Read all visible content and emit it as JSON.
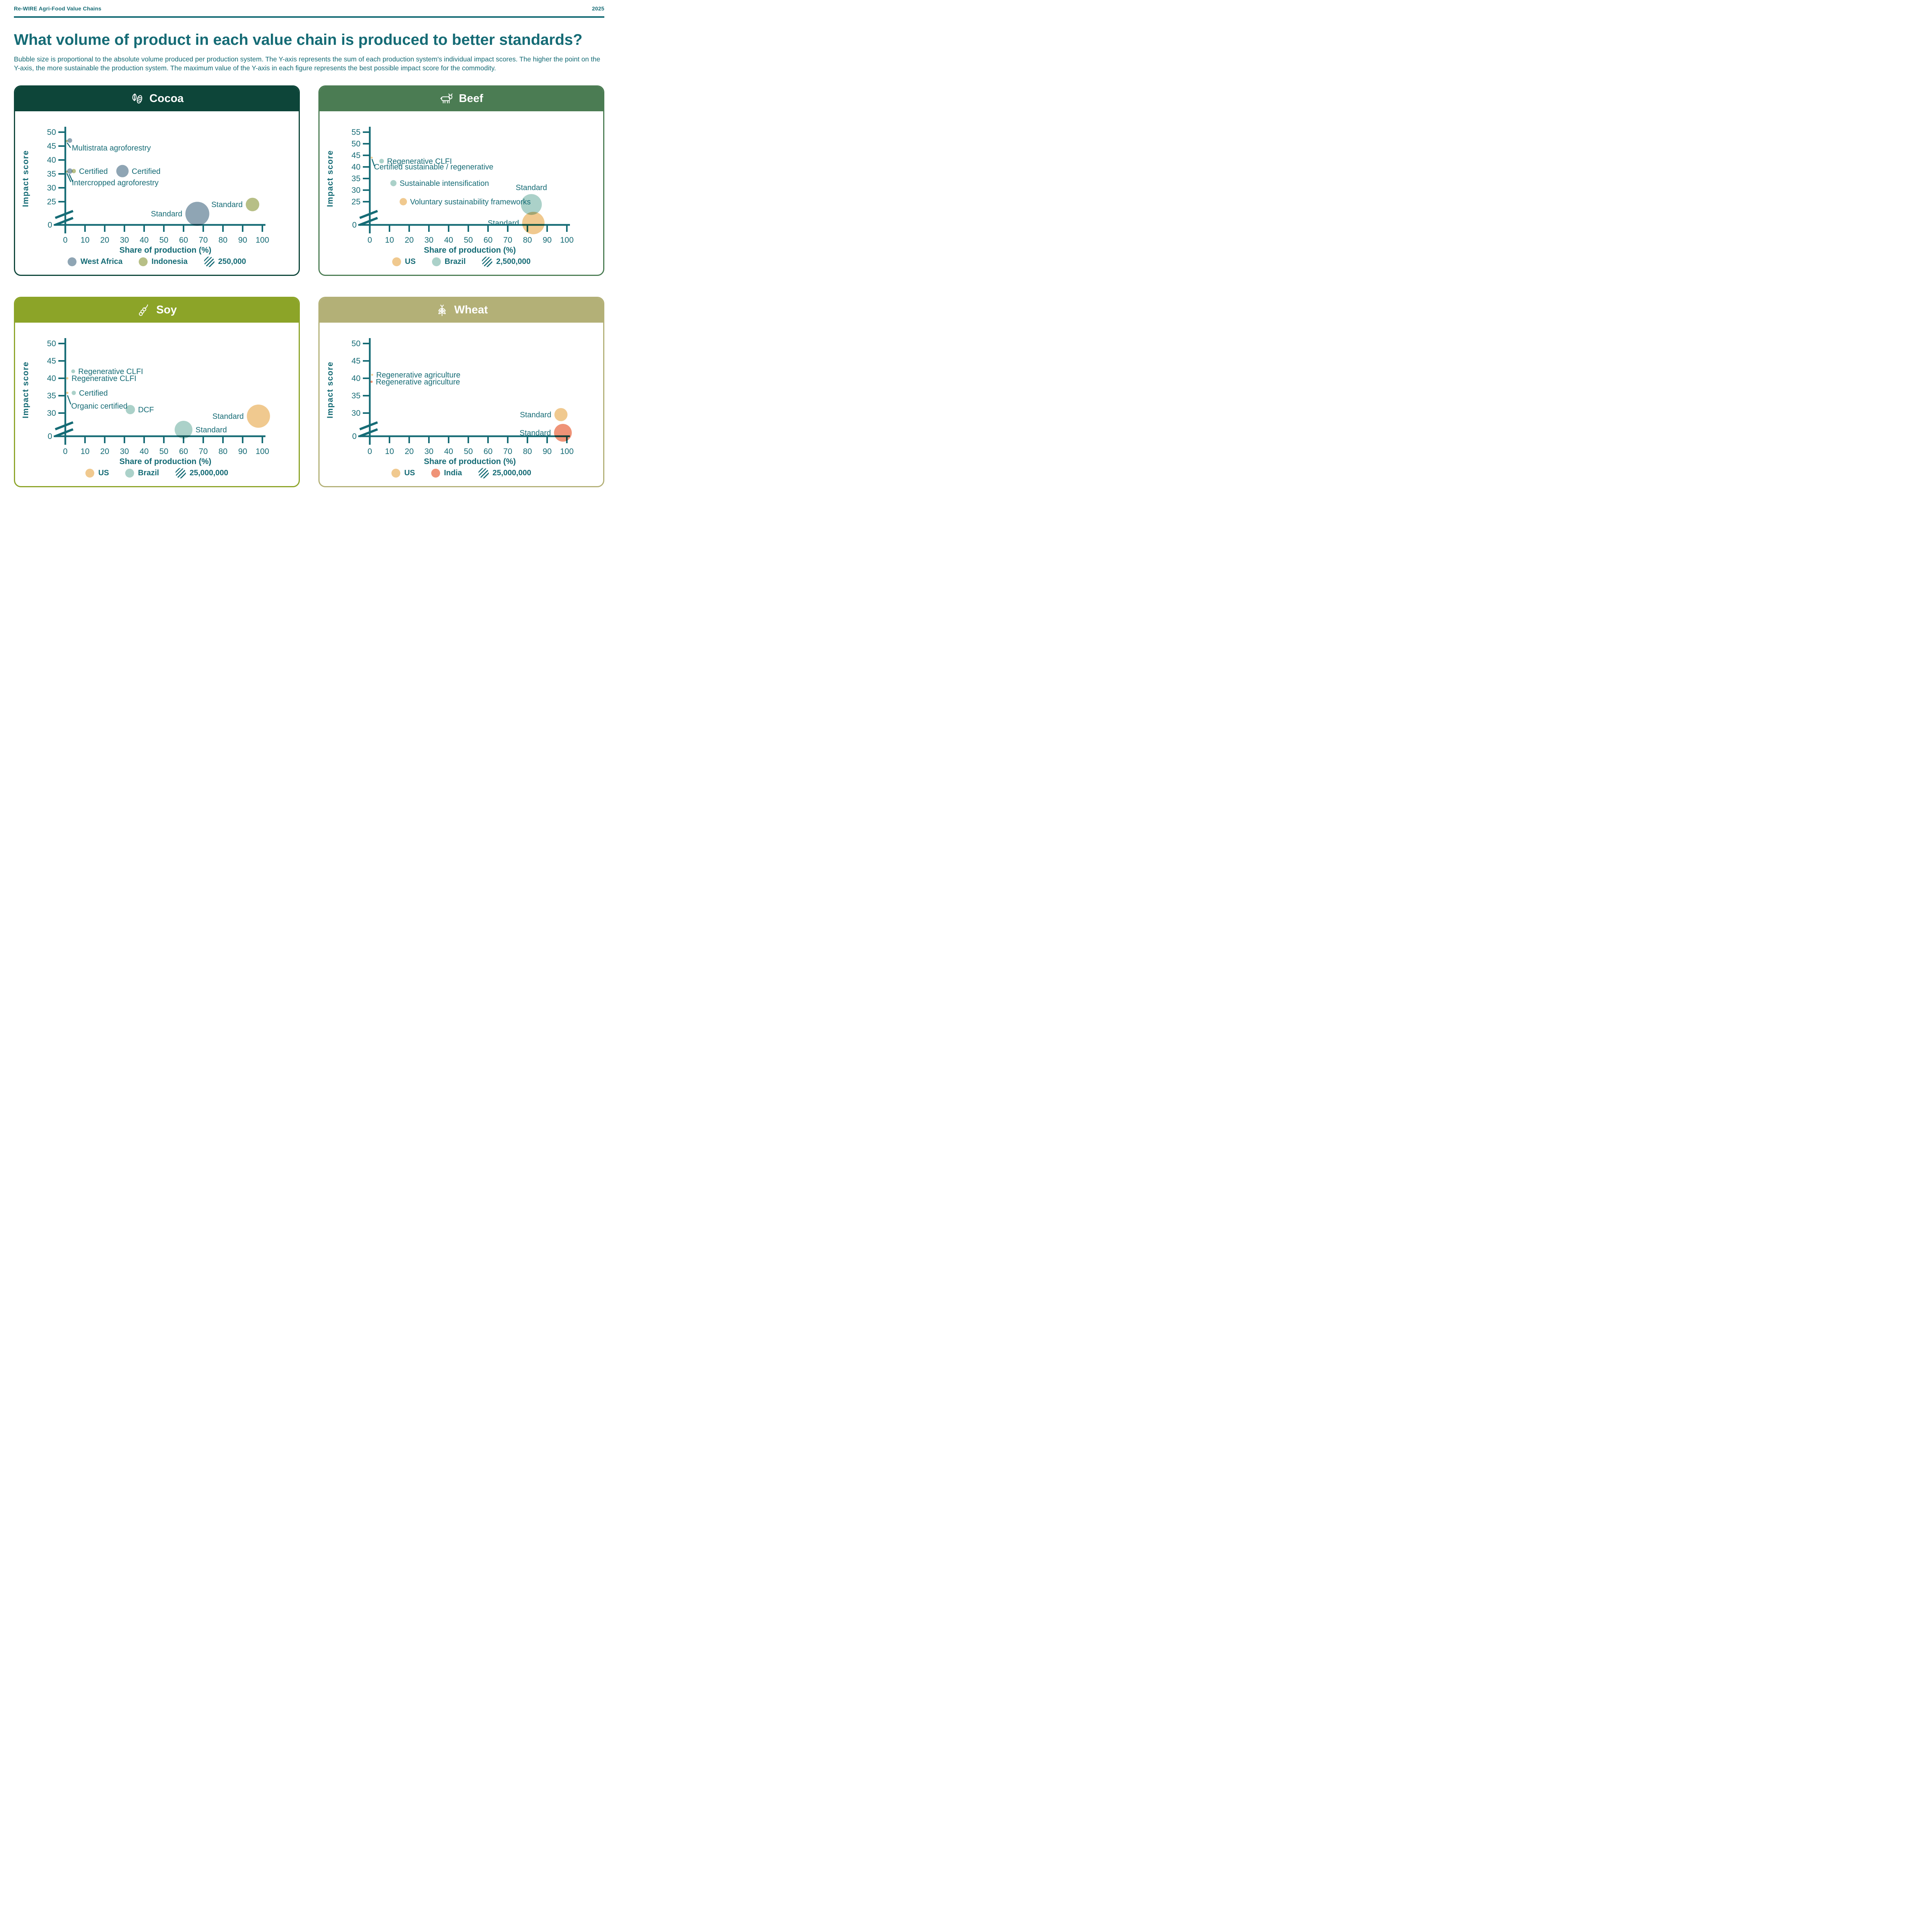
{
  "page": {
    "brand": "Re-WIRE Agri-Food Value Chains",
    "year": "2025",
    "title": "What volume of product in each value chain is produced to better standards?",
    "description": "Bubble size is proportional to the absolute volume produced per production system. The Y-axis represents the sum of each production system's individual impact scores. The higher the point on the Y-axis, the more sustainable the production system. The maximum value of the Y-axis in each figure represents the best possible impact score for the commodity."
  },
  "axis": {
    "x_label": "Share of production (%)",
    "y_label": "Impact score",
    "x_ticks": [
      0,
      10,
      20,
      30,
      40,
      50,
      60,
      70,
      80,
      90,
      100
    ]
  },
  "colors": {
    "teal_text": "#156B75",
    "west_africa": "#8FA5B4",
    "indonesia": "#B7BF86",
    "us": "#F0C98F",
    "brazil": "#ABD1C9",
    "india": "#EF9377"
  },
  "chart_data": [
    {
      "type": "scatter",
      "commodity": "Cocoa",
      "icon": "cocoa-pod-icon",
      "header_color": "#0D4539",
      "xlabel": "Share of production (%)",
      "ylabel": "Impact score",
      "y_max": 50,
      "y_ticks": [
        50,
        45,
        40,
        35,
        30,
        25
      ],
      "y_break": 25,
      "xlim": [
        0,
        100
      ],
      "bubbles": [
        {
          "label": "Multistrata agroforestry",
          "group": "indonesia",
          "x": 0.8,
          "y": 46.8,
          "r": 3,
          "label_mode": "callout",
          "callout": {
            "text_x": 3.3,
            "text_y": 43.4,
            "lines": [
              [
                0.9,
                46.2,
                2.7,
                44.4
              ]
            ]
          }
        },
        {
          "label": "Multistrata agroforestry",
          "group": "west_africa",
          "x": 2.3,
          "y": 47,
          "r": 6,
          "label_mode": "none"
        },
        {
          "label": "Intercropped agroforestry",
          "group": "indonesia",
          "x": 0.7,
          "y": 35.8,
          "r": 3,
          "label_mode": "callout",
          "callout": {
            "text_x": 3.3,
            "text_y": 30.9,
            "lines": [
              [
                0.8,
                35.2,
                2.8,
                32.1
              ],
              [
                2.0,
                34.9,
                3.8,
                32.1
              ]
            ]
          }
        },
        {
          "label": "Certified",
          "group": "west_africa",
          "x": 2.3,
          "y": 36,
          "r": 7,
          "label_mode": "none"
        },
        {
          "label": "Certified",
          "group": "indonesia",
          "x": 4.3,
          "y": 36,
          "r": 5.5,
          "label_mode": "right"
        },
        {
          "label": "Certified",
          "group": "west_africa",
          "x": 29,
          "y": 36,
          "r": 16,
          "label_mode": "right"
        },
        {
          "label": "Standard",
          "group": "west_africa",
          "x": 67,
          "y": 12,
          "r": 31,
          "label_mode": "left"
        },
        {
          "label": "Standard",
          "group": "indonesia",
          "x": 95,
          "y": 22,
          "r": 17.5,
          "label_mode": "left"
        }
      ],
      "legend": [
        {
          "label": "West Africa",
          "group": "west_africa"
        },
        {
          "label": "Indonesia",
          "group": "indonesia"
        }
      ],
      "size_legend": "250,000"
    },
    {
      "type": "scatter",
      "commodity": "Beef",
      "icon": "cow-icon",
      "header_color": "#4B7C53",
      "xlabel": "Share of production (%)",
      "ylabel": "Impact score",
      "y_max": 55,
      "y_ticks": [
        55,
        50,
        45,
        40,
        35,
        30,
        25
      ],
      "y_break": 25,
      "xlim": [
        0,
        100
      ],
      "bubbles": [
        {
          "label": "Certified sustainable / regenerative",
          "group": "us",
          "x": 1,
          "y": 44,
          "r": 2.5,
          "label_mode": "callout",
          "callout": {
            "text_x": 2.1,
            "text_y": 38.9,
            "lines": [
              [
                1.1,
                43.4,
                2.4,
                40.3
              ]
            ]
          }
        },
        {
          "label": "Regenerative CLFI",
          "group": "brazil",
          "x": 6,
          "y": 42.5,
          "r": 6,
          "label_mode": "right"
        },
        {
          "label": "Sustainable intensification",
          "group": "brazil",
          "x": 12,
          "y": 33,
          "r": 8,
          "label_mode": "right"
        },
        {
          "label": "Voluntary sustainability frameworks",
          "group": "us",
          "x": 17,
          "y": 25,
          "r": 9.5,
          "label_mode": "right"
        },
        {
          "label": "Standard",
          "group": "brazil",
          "x": 82,
          "y": 22,
          "r": 27,
          "label_mode": "above"
        },
        {
          "label": "Standard",
          "group": "us",
          "x": 83,
          "y": 2,
          "r": 29,
          "label_mode": "left"
        }
      ],
      "legend": [
        {
          "label": "US",
          "group": "us"
        },
        {
          "label": "Brazil",
          "group": "brazil"
        }
      ],
      "size_legend": "2,500,000"
    },
    {
      "type": "scatter",
      "commodity": "Soy",
      "icon": "soy-pod-icon",
      "header_color": "#8CA428",
      "xlabel": "Share of production (%)",
      "ylabel": "Impact score",
      "y_max": 50,
      "y_ticks": [
        50,
        45,
        40,
        35,
        30
      ],
      "y_break": 30,
      "xlim": [
        0,
        100
      ],
      "bubbles": [
        {
          "label": "Regenerative CLFI",
          "group": "brazil",
          "x": 4,
          "y": 42,
          "r": 5,
          "label_mode": "right"
        },
        {
          "label": "Regenerative CLFI",
          "group": "us",
          "x": 1,
          "y": 40,
          "r": 3,
          "label_mode": "right"
        },
        {
          "label": "Organic certified",
          "group": "us",
          "x": 1,
          "y": 35.8,
          "r": 3,
          "label_mode": "callout",
          "callout": {
            "text_x": 3.0,
            "text_y": 31.3,
            "lines": [
              [
                1.1,
                35.1,
                2.8,
                32.5
              ]
            ]
          }
        },
        {
          "label": "Certified",
          "group": "brazil",
          "x": 4.3,
          "y": 35.8,
          "r": 5.5,
          "label_mode": "right"
        },
        {
          "label": "DCF",
          "group": "brazil",
          "x": 33,
          "y": 31,
          "r": 12,
          "label_mode": "right"
        },
        {
          "label": "Standard",
          "group": "brazil",
          "x": 60,
          "y": 8.5,
          "r": 23,
          "label_mode": "right"
        },
        {
          "label": "Standard",
          "group": "us",
          "x": 98,
          "y": 26,
          "r": 30,
          "label_mode": "left"
        }
      ],
      "legend": [
        {
          "label": "US",
          "group": "us"
        },
        {
          "label": "Brazil",
          "group": "brazil"
        }
      ],
      "size_legend": "25,000,000"
    },
    {
      "type": "scatter",
      "commodity": "Wheat",
      "icon": "wheat-icon",
      "header_color": "#B3B077",
      "xlabel": "Share of production (%)",
      "ylabel": "Impact score",
      "y_max": 50,
      "y_ticks": [
        50,
        45,
        40,
        35,
        30
      ],
      "y_break": 30,
      "xlim": [
        0,
        100
      ],
      "bubbles": [
        {
          "label": "Regenerative agriculture",
          "group": "us",
          "x": 1.2,
          "y": 41,
          "r": 2.5,
          "label_mode": "right"
        },
        {
          "label": "Regenerative agriculture",
          "group": "india",
          "x": 0.9,
          "y": 39,
          "r": 3,
          "label_mode": "right"
        },
        {
          "label": "Standard",
          "group": "us",
          "x": 97,
          "y": 28,
          "r": 17,
          "label_mode": "left"
        },
        {
          "label": "Standard",
          "group": "india",
          "x": 98,
          "y": 4.5,
          "r": 23,
          "label_mode": "left"
        }
      ],
      "legend": [
        {
          "label": "US",
          "group": "us"
        },
        {
          "label": "India",
          "group": "india"
        }
      ],
      "size_legend": "25,000,000"
    }
  ]
}
